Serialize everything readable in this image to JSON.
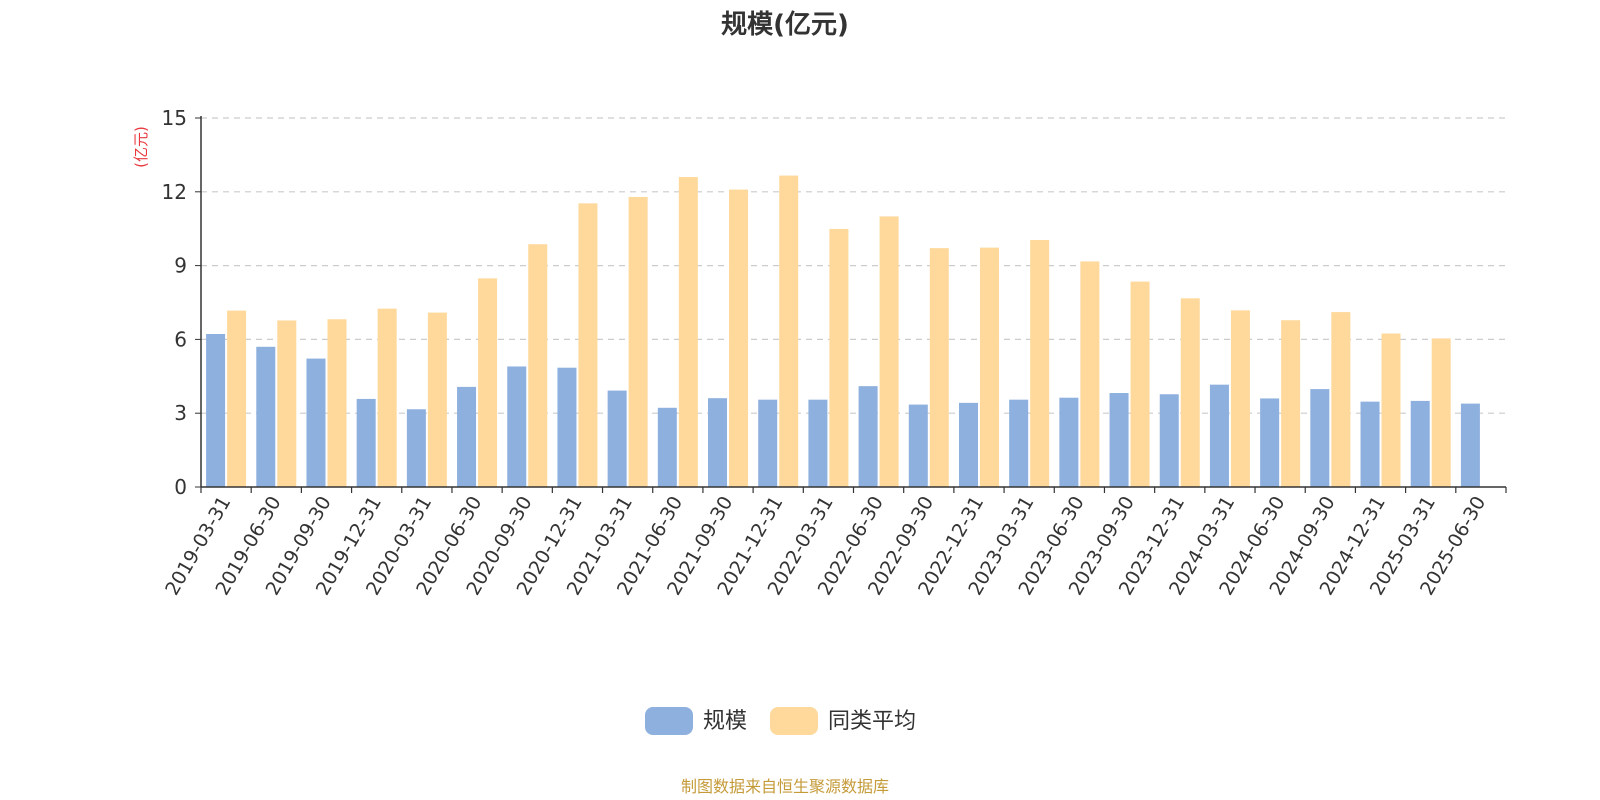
{
  "chart_data": {
    "type": "bar",
    "title": "规模(亿元)",
    "ylabel": "(亿元)",
    "ylim": [
      0,
      15
    ],
    "yticks": [
      "0",
      "3",
      "6",
      "9",
      "12",
      "15"
    ],
    "grid": true,
    "legend_position": "bottom",
    "categories": [
      "2019-03-31",
      "2019-06-30",
      "2019-09-30",
      "2019-12-31",
      "2020-03-31",
      "2020-06-30",
      "2020-09-30",
      "2020-12-31",
      "2021-03-31",
      "2021-06-30",
      "2021-09-30",
      "2021-12-31",
      "2022-03-31",
      "2022-06-30",
      "2022-09-30",
      "2022-12-31",
      "2023-03-31",
      "2023-06-30",
      "2023-09-30",
      "2023-12-31",
      "2024-03-31",
      "2024-06-30",
      "2024-09-30",
      "2024-12-31",
      "2025-03-31",
      "2025-06-30"
    ],
    "series": [
      {
        "name": "规模",
        "color": "#8eb0de",
        "values": [
          6.22,
          5.7,
          5.22,
          3.58,
          3.16,
          4.07,
          4.9,
          4.85,
          3.92,
          3.22,
          3.61,
          3.55,
          3.55,
          4.1,
          3.35,
          3.42,
          3.55,
          3.63,
          3.82,
          3.77,
          4.16,
          3.6,
          3.98,
          3.47,
          3.5,
          3.39
        ]
      },
      {
        "name": "同类平均",
        "color": "#fed99b",
        "values": [
          7.17,
          6.77,
          6.82,
          7.25,
          7.09,
          8.48,
          9.87,
          11.53,
          11.79,
          12.6,
          12.09,
          12.66,
          10.49,
          11.0,
          9.71,
          9.73,
          10.04,
          9.17,
          8.35,
          7.67,
          7.18,
          6.78,
          7.11,
          6.24,
          6.04,
          null
        ]
      }
    ]
  },
  "footer": {
    "source": "制图数据来自恒生聚源数据库"
  },
  "colors": {
    "axis": "#333333",
    "grid": "#cccccc",
    "ylabel": "#e8383d",
    "source": "#c59b3a"
  }
}
